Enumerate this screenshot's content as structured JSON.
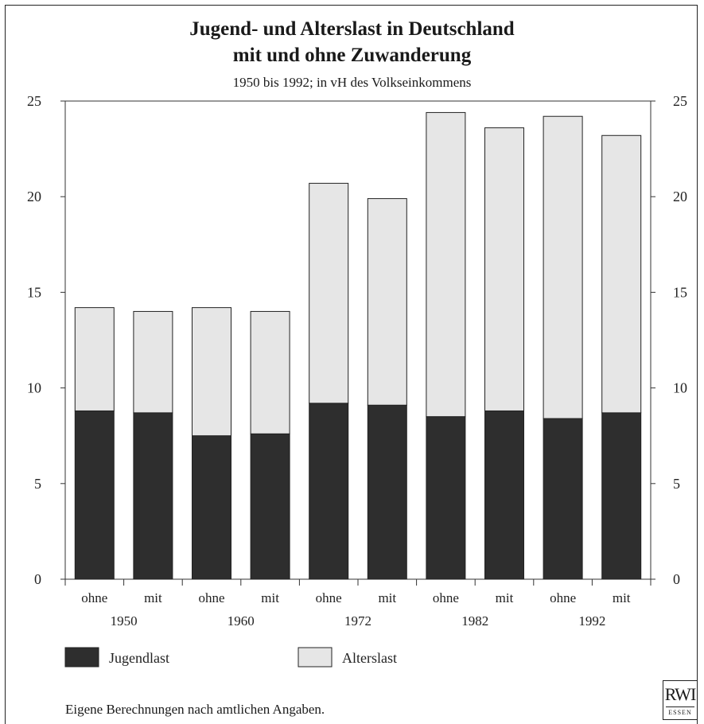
{
  "chart_data": {
    "type": "bar",
    "stacked": true,
    "title": "Jugend- und Alterslast in Deutschland",
    "title_line2": "mit und ohne Zuwanderung",
    "subtitle": "1950 bis 1992; in vH des Volkseinkommens",
    "categories": [
      "ohne",
      "mit",
      "ohne",
      "mit",
      "ohne",
      "mit",
      "ohne",
      "mit",
      "ohne",
      "mit"
    ],
    "groups": [
      "1950",
      "1960",
      "1972",
      "1982",
      "1992"
    ],
    "series": [
      {
        "name": "Jugendlast",
        "color": "#2e2e2e",
        "values": [
          8.8,
          8.7,
          7.5,
          7.6,
          9.2,
          9.1,
          8.5,
          8.8,
          8.4,
          8.7
        ]
      },
      {
        "name": "Alterslast",
        "color": "#e6e6e6",
        "values": [
          5.4,
          5.3,
          6.7,
          6.4,
          11.5,
          10.8,
          15.9,
          14.8,
          15.8,
          14.5
        ]
      }
    ],
    "ylim": [
      0,
      25
    ],
    "yticks": [
      0,
      5,
      10,
      15,
      20,
      25
    ],
    "grid": false,
    "legend_position": "bottom-left"
  },
  "source": "Eigene Berechnungen nach amtlichen Angaben.",
  "logo": {
    "main": "RWI",
    "sub": "ESSEN"
  }
}
